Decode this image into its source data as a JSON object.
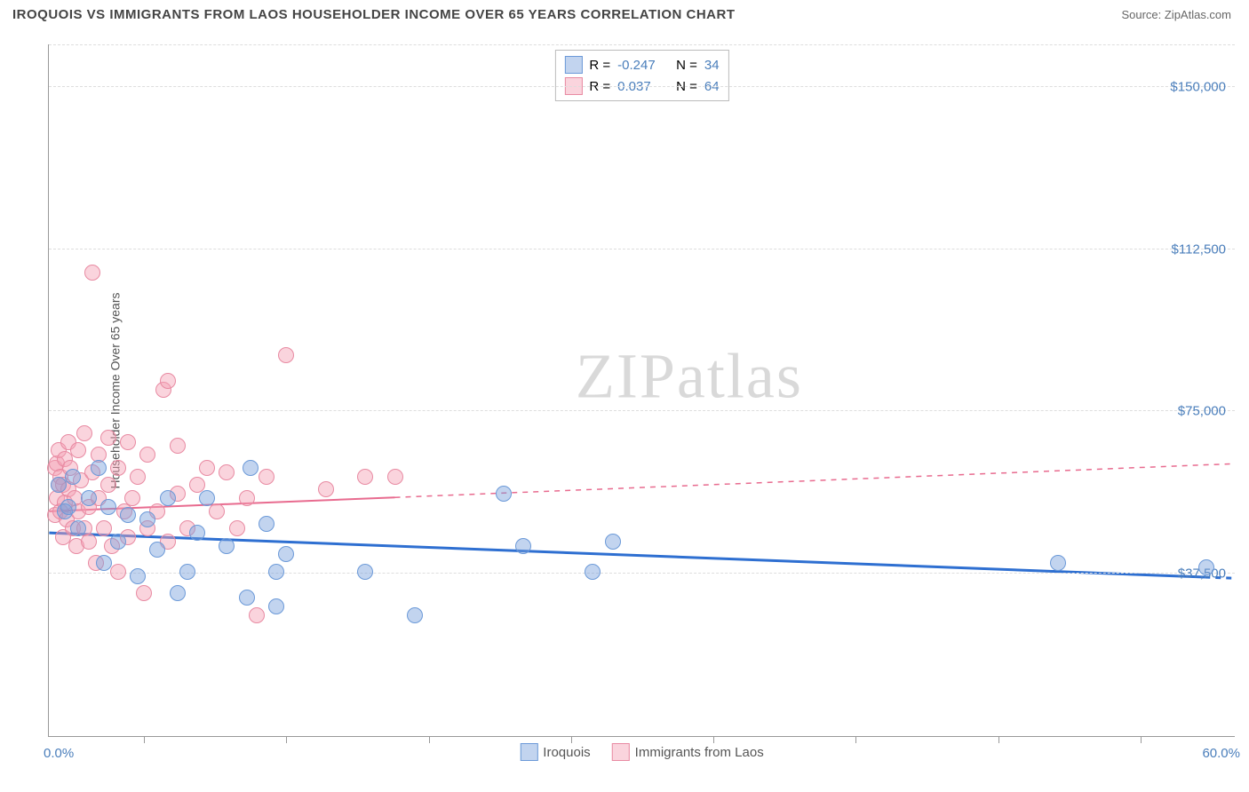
{
  "header": {
    "title": "IROQUOIS VS IMMIGRANTS FROM LAOS HOUSEHOLDER INCOME OVER 65 YEARS CORRELATION CHART",
    "source_label": "Source: ",
    "source_value": "ZipAtlas.com"
  },
  "watermark": {
    "part1": "ZIP",
    "part2": "atlas"
  },
  "chart": {
    "type": "scatter",
    "background_color": "#ffffff",
    "grid_color": "#dddddd",
    "axis_color": "#999999",
    "y_axis_title": "Householder Income Over 65 years",
    "xlim": [
      0,
      60
    ],
    "ylim": [
      0,
      160000
    ],
    "x_axis": {
      "min_label": "0.0%",
      "max_label": "60.0%",
      "tick_positions_pct": [
        8,
        20,
        32,
        44,
        56,
        68,
        80,
        92
      ]
    },
    "y_ticks": [
      {
        "value": 37500,
        "label": "$37,500"
      },
      {
        "value": 75000,
        "label": "$75,000"
      },
      {
        "value": 112500,
        "label": "$112,500"
      },
      {
        "value": 150000,
        "label": "$150,000"
      }
    ],
    "series": [
      {
        "key": "iroquois",
        "label": "Iroquois",
        "color_fill": "rgba(120,160,220,0.45)",
        "color_stroke": "#6b99d8",
        "trend_color": "#2e6fd1",
        "r_value": "-0.247",
        "n_value": "34",
        "marker_radius": 9,
        "trend": {
          "x1": 0,
          "y1": 47000,
          "x2": 60,
          "y2": 36500
        },
        "points": [
          [
            0.5,
            58000
          ],
          [
            0.8,
            52000
          ],
          [
            1.0,
            53000
          ],
          [
            1.2,
            60000
          ],
          [
            1.5,
            48000
          ],
          [
            2.0,
            55000
          ],
          [
            2.5,
            62000
          ],
          [
            2.8,
            40000
          ],
          [
            3.0,
            53000
          ],
          [
            3.5,
            45000
          ],
          [
            4.0,
            51000
          ],
          [
            4.5,
            37000
          ],
          [
            5.0,
            50000
          ],
          [
            5.5,
            43000
          ],
          [
            6.0,
            55000
          ],
          [
            6.5,
            33000
          ],
          [
            7.0,
            38000
          ],
          [
            7.5,
            47000
          ],
          [
            8.0,
            55000
          ],
          [
            9.0,
            44000
          ],
          [
            10.0,
            32000
          ],
          [
            10.2,
            62000
          ],
          [
            11.0,
            49000
          ],
          [
            11.5,
            30000
          ],
          [
            11.5,
            38000
          ],
          [
            12.0,
            42000
          ],
          [
            16.0,
            38000
          ],
          [
            18.5,
            28000
          ],
          [
            23.0,
            56000
          ],
          [
            24.0,
            44000
          ],
          [
            27.5,
            38000
          ],
          [
            28.5,
            45000
          ],
          [
            51.0,
            40000
          ],
          [
            58.5,
            39000
          ]
        ]
      },
      {
        "key": "laos",
        "label": "Immigrants from Laos",
        "color_fill": "rgba(244,160,180,0.45)",
        "color_stroke": "#e88aa2",
        "trend_color": "#e86b8f",
        "r_value": "0.037",
        "n_value": "64",
        "marker_radius": 9,
        "trend": {
          "x1": 0,
          "y1": 52000,
          "x2": 60,
          "y2": 63000
        },
        "points": [
          [
            0.3,
            62000
          ],
          [
            0.3,
            51000
          ],
          [
            0.4,
            63000
          ],
          [
            0.4,
            55000
          ],
          [
            0.5,
            58000
          ],
          [
            0.5,
            66000
          ],
          [
            0.6,
            60000
          ],
          [
            0.6,
            52000
          ],
          [
            0.7,
            58000
          ],
          [
            0.7,
            46000
          ],
          [
            0.8,
            54000
          ],
          [
            0.8,
            64000
          ],
          [
            0.9,
            50000
          ],
          [
            1.0,
            57000
          ],
          [
            1.0,
            68000
          ],
          [
            1.1,
            62000
          ],
          [
            1.2,
            48000
          ],
          [
            1.3,
            55000
          ],
          [
            1.4,
            44000
          ],
          [
            1.5,
            52000
          ],
          [
            1.5,
            66000
          ],
          [
            1.6,
            59000
          ],
          [
            1.8,
            48000
          ],
          [
            1.8,
            70000
          ],
          [
            2.0,
            53000
          ],
          [
            2.0,
            45000
          ],
          [
            2.2,
            61000
          ],
          [
            2.2,
            107000
          ],
          [
            2.4,
            40000
          ],
          [
            2.5,
            55000
          ],
          [
            2.5,
            65000
          ],
          [
            2.8,
            48000
          ],
          [
            3.0,
            58000
          ],
          [
            3.0,
            69000
          ],
          [
            3.2,
            44000
          ],
          [
            3.5,
            62000
          ],
          [
            3.5,
            38000
          ],
          [
            3.8,
            52000
          ],
          [
            4.0,
            68000
          ],
          [
            4.0,
            46000
          ],
          [
            4.2,
            55000
          ],
          [
            4.5,
            60000
          ],
          [
            4.8,
            33000
          ],
          [
            5.0,
            65000
          ],
          [
            5.0,
            48000
          ],
          [
            5.5,
            52000
          ],
          [
            5.8,
            80000
          ],
          [
            6.0,
            45000
          ],
          [
            6.0,
            82000
          ],
          [
            6.5,
            56000
          ],
          [
            6.5,
            67000
          ],
          [
            7.0,
            48000
          ],
          [
            7.5,
            58000
          ],
          [
            8.0,
            62000
          ],
          [
            8.5,
            52000
          ],
          [
            9.0,
            61000
          ],
          [
            9.5,
            48000
          ],
          [
            10.0,
            55000
          ],
          [
            10.5,
            28000
          ],
          [
            11.0,
            60000
          ],
          [
            12.0,
            88000
          ],
          [
            14.0,
            57000
          ],
          [
            16.0,
            60000
          ],
          [
            17.5,
            60000
          ]
        ]
      }
    ],
    "legend_bottom": [
      {
        "key": "iroquois",
        "label": "Iroquois"
      },
      {
        "key": "laos",
        "label": "Immigrants from Laos"
      }
    ]
  }
}
